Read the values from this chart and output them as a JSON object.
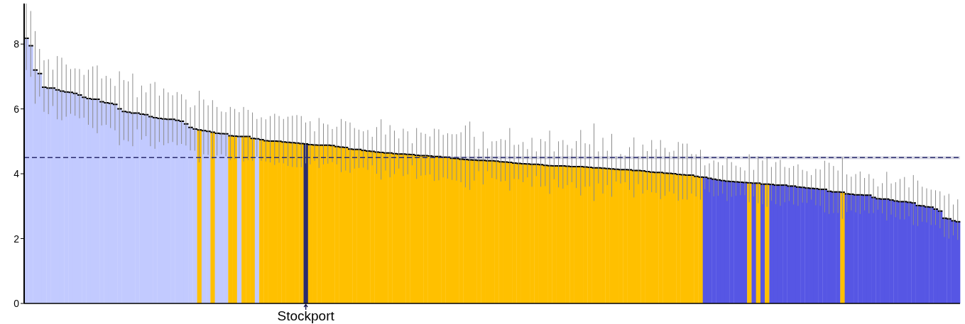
{
  "chart_data": {
    "type": "bar",
    "categories": [
      null,
      null,
      null,
      null,
      null,
      null,
      null,
      null,
      null,
      null,
      null,
      null,
      null,
      null,
      null,
      null,
      null,
      null,
      null,
      null,
      null,
      null,
      null,
      null,
      null,
      null,
      null,
      null,
      null,
      null,
      null,
      null,
      null,
      null,
      null,
      null,
      null,
      null,
      null,
      null,
      null,
      null,
      null,
      null,
      null,
      null,
      null,
      null,
      null,
      null,
      null,
      null,
      null,
      null,
      null,
      null,
      null,
      null,
      null,
      null,
      null,
      null,
      null,
      "Stockport",
      null,
      null,
      null,
      null,
      null,
      null,
      null,
      null,
      null,
      null,
      null,
      null,
      null,
      null,
      null,
      null,
      null,
      null,
      null,
      null,
      null,
      null,
      null,
      null,
      null,
      null,
      null,
      null,
      null,
      null,
      null,
      null,
      null,
      null,
      null,
      null,
      null,
      null,
      null,
      null,
      null,
      null,
      null,
      null,
      null,
      null,
      null,
      null,
      null,
      null,
      null,
      null,
      null,
      null,
      null,
      null,
      null,
      null,
      null,
      null,
      null,
      null,
      null,
      null,
      null,
      null,
      null,
      null,
      null,
      null,
      null,
      null,
      null,
      null,
      null,
      null,
      null,
      null,
      null,
      null,
      null,
      null,
      null,
      null,
      null,
      null,
      null,
      null,
      null,
      null,
      null,
      null,
      null,
      null,
      null,
      null,
      null,
      null,
      null,
      null,
      null,
      null,
      null,
      null,
      null,
      null,
      null,
      null,
      null,
      null,
      null,
      null,
      null,
      null,
      null,
      null,
      null,
      null,
      null,
      null,
      null,
      null,
      null,
      null,
      null,
      null,
      null,
      null,
      null,
      null,
      null,
      null,
      null,
      null,
      null,
      null,
      null,
      null,
      null,
      null,
      null,
      null,
      null,
      null,
      null,
      null,
      null
    ],
    "values": [
      8.18,
      7.95,
      7.2,
      7.09,
      6.67,
      6.64,
      6.64,
      6.59,
      6.55,
      6.52,
      6.51,
      6.48,
      6.43,
      6.36,
      6.32,
      6.3,
      6.3,
      6.22,
      6.19,
      6.17,
      6.14,
      6.0,
      5.92,
      5.9,
      5.87,
      5.87,
      5.84,
      5.82,
      5.76,
      5.73,
      5.71,
      5.69,
      5.68,
      5.68,
      5.65,
      5.62,
      5.54,
      5.43,
      5.38,
      5.35,
      5.33,
      5.31,
      5.28,
      5.25,
      5.24,
      5.23,
      5.17,
      5.16,
      5.15,
      5.15,
      5.15,
      5.09,
      5.08,
      5.05,
      5.02,
      5.01,
      5.01,
      5.0,
      4.98,
      4.97,
      4.96,
      4.95,
      4.93,
      4.92,
      4.9,
      4.89,
      4.88,
      4.88,
      4.88,
      4.87,
      4.84,
      4.82,
      4.81,
      4.76,
      4.75,
      4.75,
      4.72,
      4.7,
      4.69,
      4.67,
      4.66,
      4.64,
      4.64,
      4.62,
      4.61,
      4.61,
      4.6,
      4.59,
      4.57,
      4.56,
      4.56,
      4.55,
      4.53,
      4.53,
      4.51,
      4.51,
      4.48,
      4.47,
      4.45,
      4.44,
      4.43,
      4.42,
      4.41,
      4.41,
      4.4,
      4.4,
      4.39,
      4.37,
      4.36,
      4.35,
      4.33,
      4.32,
      4.31,
      4.3,
      4.29,
      4.29,
      4.28,
      4.26,
      4.25,
      4.24,
      4.24,
      4.24,
      4.23,
      4.22,
      4.22,
      4.22,
      4.21,
      4.2,
      4.18,
      4.18,
      4.17,
      4.16,
      4.15,
      4.14,
      4.13,
      4.13,
      4.12,
      4.1,
      4.1,
      4.09,
      4.07,
      4.05,
      4.04,
      4.04,
      4.02,
      4.01,
      4.0,
      3.98,
      3.97,
      3.96,
      3.96,
      3.92,
      3.9,
      3.89,
      3.86,
      3.83,
      3.81,
      3.79,
      3.77,
      3.76,
      3.75,
      3.74,
      3.73,
      3.72,
      3.71,
      3.71,
      3.68,
      3.68,
      3.67,
      3.65,
      3.65,
      3.65,
      3.62,
      3.62,
      3.59,
      3.58,
      3.56,
      3.55,
      3.54,
      3.52,
      3.52,
      3.46,
      3.44,
      3.44,
      3.43,
      3.38,
      3.37,
      3.35,
      3.35,
      3.34,
      3.34,
      3.27,
      3.23,
      3.22,
      3.22,
      3.19,
      3.16,
      3.14,
      3.14,
      3.12,
      3.1,
      3.02,
      3.01,
      2.98,
      2.97,
      2.91,
      2.85,
      2.63,
      2.61,
      2.55,
      2.52
    ],
    "errors": [
      [
        7.2,
        9.25
      ],
      [
        6.99,
        9.02
      ],
      [
        6.16,
        8.4
      ],
      [
        6.38,
        7.85
      ],
      [
        5.91,
        7.5
      ],
      [
        5.84,
        7.53
      ],
      [
        6.09,
        7.21
      ],
      [
        5.68,
        7.63
      ],
      [
        5.65,
        7.58
      ],
      [
        5.76,
        7.37
      ],
      [
        5.85,
        7.23
      ],
      [
        5.79,
        7.25
      ],
      [
        5.71,
        7.23
      ],
      [
        5.73,
        7.05
      ],
      [
        5.51,
        7.21
      ],
      [
        5.41,
        7.31
      ],
      [
        5.25,
        7.34
      ],
      [
        5.49,
        6.94
      ],
      [
        5.51,
        7.02
      ],
      [
        5.41,
        6.94
      ],
      [
        5.34,
        6.71
      ],
      [
        4.88,
        7.16
      ],
      [
        5.04,
        6.89
      ],
      [
        5.0,
        6.85
      ],
      [
        4.85,
        7.09
      ],
      [
        5.37,
        6.36
      ],
      [
        5.05,
        6.72
      ],
      [
        5.16,
        6.51
      ],
      [
        4.85,
        6.78
      ],
      [
        4.77,
        6.83
      ],
      [
        4.98,
        6.41
      ],
      [
        4.88,
        6.63
      ],
      [
        4.94,
        6.51
      ],
      [
        4.98,
        6.42
      ],
      [
        4.88,
        6.52
      ],
      [
        4.92,
        6.45
      ],
      [
        4.87,
        6.29
      ],
      [
        4.72,
        6.05
      ],
      [
        4.71,
        6.11
      ],
      [
        4.35,
        6.56
      ],
      [
        4.6,
        6.29
      ],
      [
        4.58,
        6.11
      ],
      [
        4.45,
        6.27
      ],
      [
        4.56,
        6.06
      ],
      [
        4.6,
        5.92
      ],
      [
        4.54,
        5.9
      ],
      [
        4.42,
        6.06
      ],
      [
        4.45,
        6.0
      ],
      [
        4.51,
        5.9
      ],
      [
        4.38,
        6.06
      ],
      [
        4.42,
        5.97
      ],
      [
        4.4,
        5.89
      ],
      [
        4.52,
        5.69
      ],
      [
        4.4,
        5.74
      ],
      [
        4.38,
        5.68
      ],
      [
        4.35,
        5.78
      ],
      [
        4.27,
        5.85
      ],
      [
        4.34,
        5.78
      ],
      [
        4.32,
        5.69
      ],
      [
        4.24,
        5.76
      ],
      [
        4.21,
        5.79
      ],
      [
        4.2,
        5.81
      ],
      [
        4.2,
        5.78
      ],
      [
        4.32,
        5.58
      ],
      [
        4.29,
        5.62
      ],
      [
        4.4,
        5.31
      ],
      [
        4.18,
        5.72
      ],
      [
        4.29,
        5.55
      ],
      [
        4.31,
        5.52
      ],
      [
        4.36,
        5.38
      ],
      [
        4.29,
        5.45
      ],
      [
        4.05,
        5.69
      ],
      [
        4.1,
        5.62
      ],
      [
        4.03,
        5.58
      ],
      [
        4.16,
        5.41
      ],
      [
        4.18,
        5.36
      ],
      [
        4.19,
        5.31
      ],
      [
        4.12,
        5.35
      ],
      [
        4.26,
        5.14
      ],
      [
        4.0,
        5.44
      ],
      [
        3.82,
        5.68
      ],
      [
        4.1,
        5.21
      ],
      [
        3.89,
        5.5
      ],
      [
        3.99,
        5.33
      ],
      [
        4.16,
        5.09
      ],
      [
        3.93,
        5.39
      ],
      [
        3.98,
        5.31
      ],
      [
        4.26,
        4.94
      ],
      [
        3.84,
        5.41
      ],
      [
        3.94,
        5.27
      ],
      [
        3.96,
        5.23
      ],
      [
        3.98,
        5.15
      ],
      [
        3.78,
        5.39
      ],
      [
        3.8,
        5.37
      ],
      [
        3.89,
        5.2
      ],
      [
        3.85,
        5.25
      ],
      [
        3.81,
        5.22
      ],
      [
        3.79,
        5.22
      ],
      [
        3.74,
        5.28
      ],
      [
        3.58,
        5.49
      ],
      [
        3.5,
        5.61
      ],
      [
        3.79,
        5.14
      ],
      [
        4.08,
        4.77
      ],
      [
        3.67,
        5.3
      ],
      [
        4.08,
        4.78
      ],
      [
        3.87,
        5.0
      ],
      [
        3.83,
        5.01
      ],
      [
        3.76,
        5.07
      ],
      [
        3.78,
        5.04
      ],
      [
        3.48,
        5.41
      ],
      [
        3.84,
        4.89
      ],
      [
        3.83,
        4.9
      ],
      [
        3.74,
        4.98
      ],
      [
        3.89,
        4.76
      ],
      [
        3.6,
        5.11
      ],
      [
        3.93,
        4.69
      ],
      [
        3.6,
        5.07
      ],
      [
        3.62,
        5.0
      ],
      [
        3.38,
        5.33
      ],
      [
        3.83,
        4.69
      ],
      [
        3.58,
        5.0
      ],
      [
        3.54,
        5.04
      ],
      [
        3.65,
        4.89
      ],
      [
        3.74,
        4.78
      ],
      [
        3.56,
        5.01
      ],
      [
        3.33,
        5.35
      ],
      [
        3.6,
        4.94
      ],
      [
        3.61,
        4.91
      ],
      [
        3.16,
        5.55
      ],
      [
        3.7,
        4.69
      ],
      [
        3.39,
        5.11
      ],
      [
        3.65,
        4.71
      ],
      [
        3.29,
        5.23
      ],
      [
        3.76,
        4.54
      ],
      [
        3.7,
        4.61
      ],
      [
        3.74,
        4.56
      ],
      [
        3.5,
        4.82
      ],
      [
        3.27,
        5.12
      ],
      [
        3.68,
        4.54
      ],
      [
        3.39,
        4.9
      ],
      [
        3.5,
        4.7
      ],
      [
        3.43,
        5.04
      ],
      [
        3.41,
        4.76
      ],
      [
        3.22,
        5.04
      ],
      [
        3.32,
        4.8
      ],
      [
        3.45,
        4.67
      ],
      [
        3.39,
        4.71
      ],
      [
        3.17,
        4.98
      ],
      [
        3.21,
        4.93
      ],
      [
        3.2,
        4.93
      ],
      [
        3.39,
        4.61
      ],
      [
        3.3,
        4.6
      ],
      [
        3.2,
        4.74
      ],
      [
        3.52,
        4.26
      ],
      [
        3.43,
        4.32
      ],
      [
        3.3,
        4.41
      ],
      [
        3.32,
        4.36
      ],
      [
        3.39,
        4.26
      ],
      [
        3.16,
        4.48
      ],
      [
        3.29,
        4.36
      ],
      [
        3.32,
        4.25
      ],
      [
        3.34,
        4.2
      ],
      [
        3.34,
        4.1
      ],
      [
        3.12,
        4.6
      ],
      [
        3.3,
        4.12
      ],
      [
        3.09,
        4.54
      ],
      [
        3.06,
        4.41
      ],
      [
        2.98,
        4.5
      ],
      [
        3.17,
        4.21
      ],
      [
        3.06,
        4.36
      ],
      [
        3.01,
        4.43
      ],
      [
        3.12,
        4.21
      ],
      [
        3.16,
        4.18
      ],
      [
        3.05,
        4.24
      ],
      [
        3.01,
        4.29
      ],
      [
        3.11,
        4.12
      ],
      [
        3.1,
        4.08
      ],
      [
        3.2,
        3.96
      ],
      [
        3.03,
        4.15
      ],
      [
        3.01,
        4.13
      ],
      [
        2.81,
        4.4
      ],
      [
        2.76,
        4.34
      ],
      [
        2.79,
        4.24
      ],
      [
        2.79,
        4.1
      ],
      [
        2.61,
        4.51
      ],
      [
        2.82,
        3.98
      ],
      [
        2.87,
        3.91
      ],
      [
        2.81,
        3.99
      ],
      [
        2.76,
        4.07
      ],
      [
        2.87,
        3.87
      ],
      [
        2.78,
        3.99
      ],
      [
        2.79,
        3.85
      ],
      [
        2.89,
        3.61
      ],
      [
        2.78,
        3.71
      ],
      [
        2.56,
        4.06
      ],
      [
        2.74,
        3.7
      ],
      [
        2.66,
        3.74
      ],
      [
        2.59,
        3.84
      ],
      [
        2.59,
        3.9
      ],
      [
        2.69,
        3.58
      ],
      [
        2.42,
        3.96
      ],
      [
        2.39,
        3.79
      ],
      [
        2.52,
        3.6
      ],
      [
        2.5,
        3.55
      ],
      [
        2.42,
        3.51
      ],
      [
        2.42,
        3.49
      ],
      [
        2.32,
        3.46
      ],
      [
        2.05,
        3.33
      ],
      [
        2.0,
        3.38
      ],
      [
        2.1,
        3.05
      ],
      [
        1.96,
        3.21
      ]
    ],
    "colors": [
      "#c2caff",
      "#c2caff",
      "#c2caff",
      "#c2caff",
      "#c2caff",
      "#c2caff",
      "#c2caff",
      "#c2caff",
      "#c2caff",
      "#c2caff",
      "#c2caff",
      "#c2caff",
      "#c2caff",
      "#c2caff",
      "#c2caff",
      "#c2caff",
      "#c2caff",
      "#c2caff",
      "#c2caff",
      "#c2caff",
      "#c2caff",
      "#c2caff",
      "#c2caff",
      "#c2caff",
      "#c2caff",
      "#c2caff",
      "#c2caff",
      "#c2caff",
      "#c2caff",
      "#c2caff",
      "#c2caff",
      "#c2caff",
      "#c2caff",
      "#c2caff",
      "#c2caff",
      "#c2caff",
      "#c2caff",
      "#c2caff",
      "#c2caff",
      "#ffc000",
      "#c2caff",
      "#c2caff",
      "#ffc000",
      "#c2caff",
      "#c2caff",
      "#c2caff",
      "#ffc000",
      "#ffc000",
      "#c2caff",
      "#ffc000",
      "#ffc000",
      "#ffc000",
      "#c2caff",
      "#ffc000",
      "#ffc000",
      "#ffc000",
      "#ffc000",
      "#ffc000",
      "#ffc000",
      "#ffc000",
      "#ffc000",
      "#ffc000",
      "#ffc000",
      "#2b2d6e",
      "#ffc000",
      "#ffc000",
      "#ffc000",
      "#ffc000",
      "#ffc000",
      "#ffc000",
      "#ffc000",
      "#ffc000",
      "#ffc000",
      "#ffc000",
      "#ffc000",
      "#ffc000",
      "#ffc000",
      "#ffc000",
      "#ffc000",
      "#ffc000",
      "#ffc000",
      "#ffc000",
      "#ffc000",
      "#ffc000",
      "#ffc000",
      "#ffc000",
      "#ffc000",
      "#ffc000",
      "#ffc000",
      "#ffc000",
      "#ffc000",
      "#ffc000",
      "#ffc000",
      "#ffc000",
      "#ffc000",
      "#ffc000",
      "#ffc000",
      "#ffc000",
      "#ffc000",
      "#ffc000",
      "#ffc000",
      "#ffc000",
      "#ffc000",
      "#ffc000",
      "#ffc000",
      "#ffc000",
      "#ffc000",
      "#ffc000",
      "#ffc000",
      "#ffc000",
      "#ffc000",
      "#ffc000",
      "#ffc000",
      "#ffc000",
      "#ffc000",
      "#ffc000",
      "#ffc000",
      "#ffc000",
      "#ffc000",
      "#ffc000",
      "#ffc000",
      "#ffc000",
      "#ffc000",
      "#ffc000",
      "#ffc000",
      "#ffc000",
      "#ffc000",
      "#ffc000",
      "#ffc000",
      "#ffc000",
      "#ffc000",
      "#ffc000",
      "#ffc000",
      "#ffc000",
      "#ffc000",
      "#ffc000",
      "#ffc000",
      "#ffc000",
      "#ffc000",
      "#ffc000",
      "#ffc000",
      "#ffc000",
      "#ffc000",
      "#ffc000",
      "#ffc000",
      "#ffc000",
      "#ffc000",
      "#ffc000",
      "#ffc000",
      "#ffc000",
      "#ffc000",
      "#ffc000",
      "#ffc000",
      "#5656e4",
      "#5656e4",
      "#5656e4",
      "#5656e4",
      "#5656e4",
      "#5656e4",
      "#5656e4",
      "#5656e4",
      "#5656e4",
      "#5656e4",
      "#ffc000",
      "#5656e4",
      "#ffc000",
      "#5656e4",
      "#ffc000",
      "#5656e4",
      "#5656e4",
      "#5656e4",
      "#5656e4",
      "#5656e4",
      "#5656e4",
      "#5656e4",
      "#5656e4",
      "#5656e4",
      "#5656e4",
      "#5656e4",
      "#5656e4",
      "#5656e4",
      "#5656e4",
      "#5656e4",
      "#5656e4",
      "#ffc000",
      "#5656e4",
      "#5656e4",
      "#5656e4",
      "#5656e4",
      "#5656e4",
      "#5656e4",
      "#5656e4",
      "#5656e4",
      "#5656e4",
      "#5656e4",
      "#5656e4",
      "#5656e4",
      "#5656e4",
      "#5656e4",
      "#5656e4",
      "#5656e4",
      "#5656e4",
      "#5656e4",
      "#5656e4",
      "#5656e4",
      "#5656e4",
      "#5656e4",
      "#5656e4",
      "#5656e4",
      "#5656e4",
      "#5656e4"
    ],
    "ylim": [
      0,
      9.25
    ],
    "yticks": [
      0,
      2,
      4,
      6,
      8
    ],
    "ref_lines": [
      {
        "axis": "y",
        "value": 4.5,
        "color": "#2b2d6e",
        "line_style": "dashed"
      }
    ],
    "bands": [
      {
        "axis": "y",
        "from": 4.45,
        "to": 4.54,
        "color": "#2b2d6e"
      }
    ]
  }
}
